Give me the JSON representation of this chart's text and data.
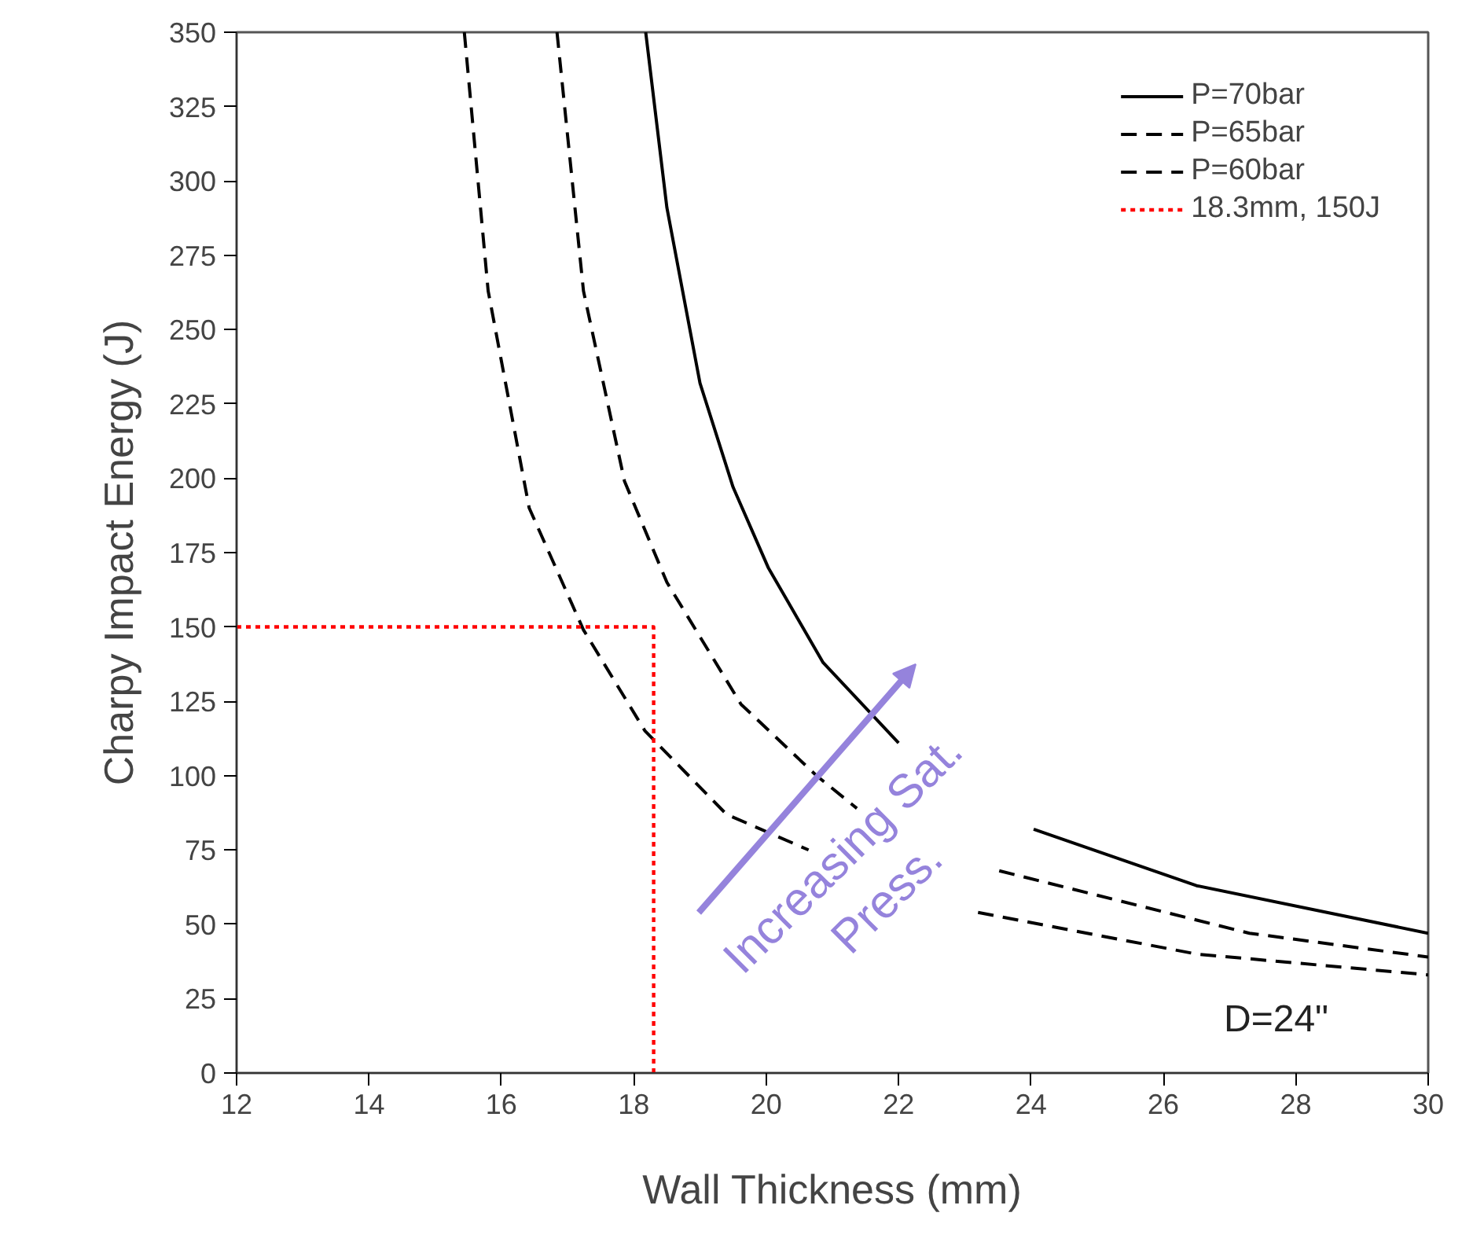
{
  "chart_data": {
    "type": "line",
    "xlabel": "Wall Thickness (mm)",
    "ylabel": "Charpy Impact Energy (J)",
    "xlim": [
      12,
      30
    ],
    "xticks": [
      12,
      14,
      16,
      18,
      20,
      22,
      24,
      26,
      28,
      30
    ],
    "ylim": [
      0,
      350
    ],
    "yticks": [
      0,
      25,
      50,
      75,
      100,
      125,
      150,
      175,
      200,
      225,
      250,
      275,
      300,
      325,
      350
    ],
    "grid": false,
    "legend": "top right",
    "marker": "none",
    "series": [
      {
        "name": "P=70bar",
        "color": "#000000",
        "line_style": "solid",
        "x": [
          18.18,
          18.5,
          19.0,
          19.5,
          20.03,
          20.86,
          22.0,
          22.01,
          24.04,
          26.5,
          30
        ],
        "values": [
          350,
          291,
          232,
          197,
          170,
          138,
          111,
          null,
          82,
          63,
          47
        ]
      },
      {
        "name": "P=65bar",
        "color": "#000000",
        "line_style": "dashed",
        "x": [
          16.84,
          17.24,
          17.86,
          18.5,
          19.62,
          20.76,
          21.37,
          21.38,
          23.52,
          27.3,
          30
        ],
        "values": [
          350,
          263,
          199,
          165,
          124,
          100,
          89,
          null,
          68,
          47,
          39
        ]
      },
      {
        "name": "P=60bar",
        "color": "#000000",
        "line_style": "dashed",
        "x": [
          15.44,
          15.8,
          16.42,
          17.24,
          18.17,
          19.4,
          20.64,
          20.65,
          23.2,
          26.5,
          30
        ],
        "values": [
          350,
          263,
          190,
          149,
          115,
          87,
          75,
          null,
          54,
          40,
          33
        ]
      },
      {
        "name": "18.3mm, 150J",
        "color": "#ff0000",
        "line_style": "dotted",
        "x": [
          12,
          18.3,
          18.3
        ],
        "values": [
          150,
          150,
          0
        ]
      }
    ],
    "annotations": [
      "Increasing Sat.\nPress.",
      "D=24\""
    ]
  }
}
